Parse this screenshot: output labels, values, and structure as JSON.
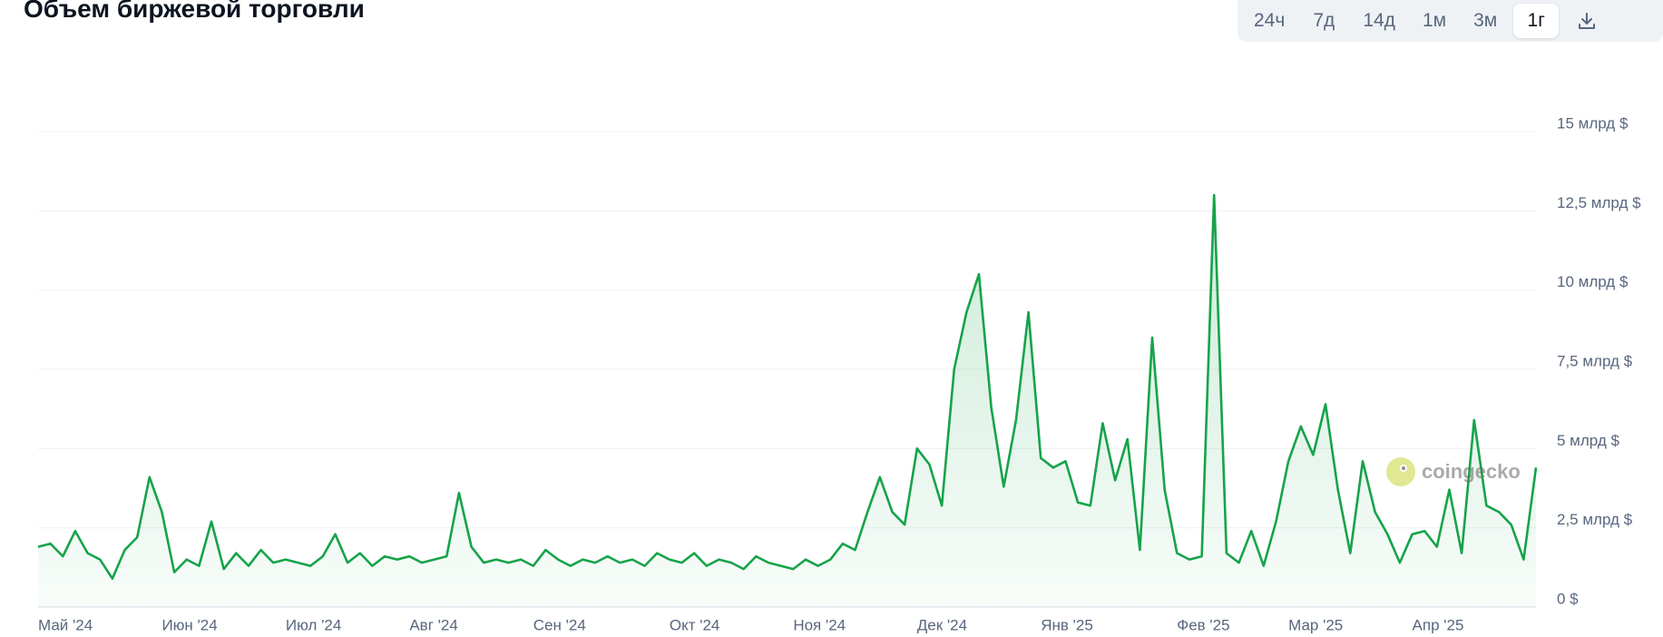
{
  "toolbar": {
    "buttons": [
      "24ч",
      "7д",
      "14д",
      "1м",
      "3м",
      "1г"
    ]
  },
  "watermark": "coingecko",
  "chart_data": {
    "type": "area",
    "title": "Объем биржевой торговли",
    "color": "#16a34a",
    "grid": true,
    "categories": [
      "Май '24",
      null,
      null,
      null,
      null,
      null,
      null,
      null,
      null,
      null,
      "Июн '24",
      null,
      null,
      null,
      null,
      null,
      null,
      null,
      null,
      null,
      "Июл '24",
      null,
      null,
      null,
      null,
      null,
      null,
      null,
      null,
      null,
      "Авг '24",
      null,
      null,
      null,
      null,
      null,
      null,
      null,
      null,
      null,
      "Сен '24",
      null,
      null,
      null,
      null,
      null,
      null,
      null,
      null,
      null,
      null,
      "Окт '24",
      null,
      null,
      null,
      null,
      null,
      null,
      null,
      null,
      null,
      "Ноя '24",
      null,
      null,
      null,
      null,
      null,
      null,
      null,
      null,
      null,
      "Дек '24",
      null,
      null,
      null,
      null,
      null,
      null,
      null,
      null,
      null,
      "Янв '25",
      null,
      null,
      null,
      null,
      null,
      null,
      null,
      null,
      null,
      null,
      "Фев '25",
      null,
      null,
      null,
      null,
      null,
      null,
      null,
      null,
      "Мар '25",
      null,
      null,
      null,
      null,
      null,
      null,
      null,
      null,
      null,
      "Апр '25",
      null,
      null,
      null,
      null,
      null,
      null,
      null,
      null,
      null,
      null
    ],
    "values": [
      1.9,
      2.0,
      1.6,
      2.4,
      1.7,
      1.5,
      0.9,
      1.8,
      2.2,
      4.1,
      3.0,
      1.1,
      1.5,
      1.3,
      2.7,
      1.2,
      1.7,
      1.3,
      1.8,
      1.4,
      1.5,
      1.4,
      1.3,
      1.6,
      2.3,
      1.4,
      1.7,
      1.3,
      1.6,
      1.5,
      1.6,
      1.4,
      1.5,
      1.6,
      3.6,
      1.9,
      1.4,
      1.5,
      1.4,
      1.5,
      1.3,
      1.8,
      1.5,
      1.3,
      1.5,
      1.4,
      1.6,
      1.4,
      1.5,
      1.3,
      1.7,
      1.5,
      1.4,
      1.7,
      1.3,
      1.5,
      1.4,
      1.2,
      1.6,
      1.4,
      1.3,
      1.2,
      1.5,
      1.3,
      1.5,
      2.0,
      1.8,
      3.0,
      4.1,
      3.0,
      2.6,
      5.0,
      4.5,
      3.2,
      7.5,
      9.3,
      10.5,
      6.3,
      3.8,
      5.9,
      9.3,
      4.7,
      4.4,
      4.6,
      3.3,
      3.2,
      5.8,
      4.0,
      5.3,
      1.8,
      8.5,
      3.7,
      1.7,
      1.5,
      1.6,
      13.0,
      1.7,
      1.4,
      2.4,
      1.3,
      2.7,
      4.6,
      5.7,
      4.8,
      6.4,
      3.7,
      1.7,
      4.6,
      3.0,
      2.3,
      1.4,
      2.3,
      2.4,
      1.9,
      3.7,
      1.7,
      5.9,
      3.2,
      3.0,
      2.6,
      1.5,
      4.4
    ],
    "ylim": [
      0,
      16.5
    ],
    "yticks": [
      {
        "value": 0,
        "label": "0 $"
      },
      {
        "value": 2.5,
        "label": "2,5 млрд $"
      },
      {
        "value": 5,
        "label": "5 млрд $"
      },
      {
        "value": 7.5,
        "label": "7,5 млрд $"
      },
      {
        "value": 10,
        "label": "10 млрд $"
      },
      {
        "value": 12.5,
        "label": "12,5 млрд $"
      },
      {
        "value": 15,
        "label": "15 млрд $"
      }
    ]
  }
}
